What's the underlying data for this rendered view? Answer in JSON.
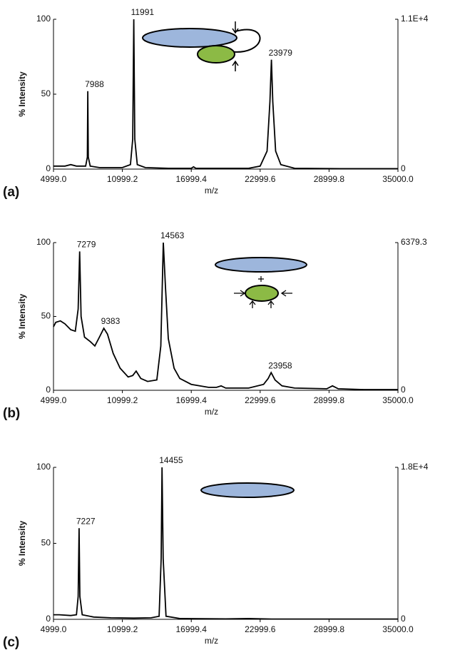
{
  "chart_data": [
    {
      "type": "line",
      "title": "(a)",
      "x_label": "m/z",
      "y_label": "% Intensity",
      "color": "#000000",
      "xlim": [
        4999.0,
        35000.0
      ],
      "xticks": [
        {
          "value": 4999.0,
          "label": "4999.0"
        },
        10999.2,
        16999.4,
        22999.6,
        28999.8,
        {
          "value": 35000.0,
          "label": "35000.0"
        }
      ],
      "ylim": [
        0,
        100
      ],
      "yticks": [
        0,
        50,
        100
      ],
      "y2lim": [
        0,
        11000
      ],
      "y2ticks": [
        0,
        {
          "value": 11000,
          "label": "1.1E+4"
        }
      ],
      "x": [
        5000,
        6000,
        6500,
        7000,
        7800,
        7950,
        7988,
        8030,
        8200,
        9000,
        10000,
        11000,
        11700,
        11900,
        11991,
        12080,
        12300,
        13000,
        15000,
        17000,
        17200,
        17400,
        20000,
        22000,
        23000,
        23600,
        23850,
        23979,
        24100,
        24350,
        24800,
        26000,
        30000,
        35000
      ],
      "values": [
        2,
        2,
        3,
        2,
        2,
        8,
        52,
        8,
        2,
        1,
        1,
        1,
        3,
        20,
        100,
        20,
        3,
        1,
        0.5,
        0.5,
        1.5,
        0.5,
        0.5,
        0.5,
        2,
        12,
        45,
        73,
        45,
        12,
        3,
        0.5,
        0.3,
        0.3
      ],
      "peak_labels": [
        7988,
        11991,
        23979
      ]
    },
    {
      "type": "line",
      "title": "(b)",
      "x_label": "m/z",
      "y_label": "% Intensity",
      "color": "#000000",
      "xlim": [
        4999.0,
        35000.0
      ],
      "xticks": [
        {
          "value": 4999.0,
          "label": "4999.0"
        },
        10999.2,
        16999.4,
        22999.6,
        28999.8,
        {
          "value": 35000.0,
          "label": "35000.0"
        }
      ],
      "ylim": [
        0,
        100
      ],
      "yticks": [
        0,
        50,
        100
      ],
      "y2lim": [
        0,
        6379.3
      ],
      "y2ticks": [
        0,
        6379.3
      ],
      "x": [
        4999,
        5200,
        5600,
        6000,
        6500,
        6900,
        7150,
        7279,
        7400,
        7700,
        8200,
        8600,
        9000,
        9383,
        9700,
        10200,
        10800,
        11500,
        11900,
        12200,
        12600,
        13200,
        14000,
        14350,
        14563,
        14750,
        15000,
        15500,
        16000,
        17000,
        18500,
        19200,
        19600,
        20000,
        22000,
        23300,
        23700,
        23958,
        24300,
        24900,
        26000,
        28800,
        29300,
        29800,
        32000,
        35000
      ],
      "values": [
        43,
        46,
        47,
        45,
        41,
        40,
        55,
        94,
        50,
        36,
        33,
        30,
        36,
        42,
        38,
        25,
        15,
        9,
        10,
        13,
        8,
        6,
        7,
        30,
        100,
        70,
        35,
        15,
        8,
        4,
        2,
        2,
        3,
        1.5,
        1.5,
        4,
        8,
        12,
        7,
        3,
        1.5,
        1,
        3,
        1,
        0.5,
        0.5
      ],
      "peak_labels": [
        7279,
        9383,
        14563,
        23958
      ]
    },
    {
      "type": "line",
      "title": "(c)",
      "x_label": "m/z",
      "y_label": "% Intensity",
      "color": "#000000",
      "xlim": [
        4999.0,
        35000.0
      ],
      "xticks": [
        {
          "value": 4999.0,
          "label": "4999.0"
        },
        10999.2,
        16999.4,
        22999.6,
        28999.8,
        {
          "value": 35000.0,
          "label": "35000.0"
        }
      ],
      "ylim": [
        0,
        100
      ],
      "yticks": [
        0,
        50,
        100
      ],
      "y2lim": [
        0,
        18000
      ],
      "y2ticks": [
        0,
        {
          "value": 18000,
          "label": "1.8E+4"
        }
      ],
      "x": [
        4999,
        5500,
        6500,
        7000,
        7150,
        7227,
        7300,
        7500,
        8500,
        10000,
        12000,
        13500,
        14200,
        14380,
        14455,
        14550,
        14800,
        16000,
        20000,
        22000,
        24000,
        28000,
        35000
      ],
      "values": [
        3,
        3,
        2.5,
        3,
        15,
        60,
        15,
        3,
        1.5,
        1,
        0.8,
        1,
        2,
        40,
        100,
        40,
        2,
        0.5,
        0.3,
        0.5,
        0.2,
        0.2,
        0.2
      ],
      "peak_labels": [
        7227,
        14455
      ]
    }
  ]
}
